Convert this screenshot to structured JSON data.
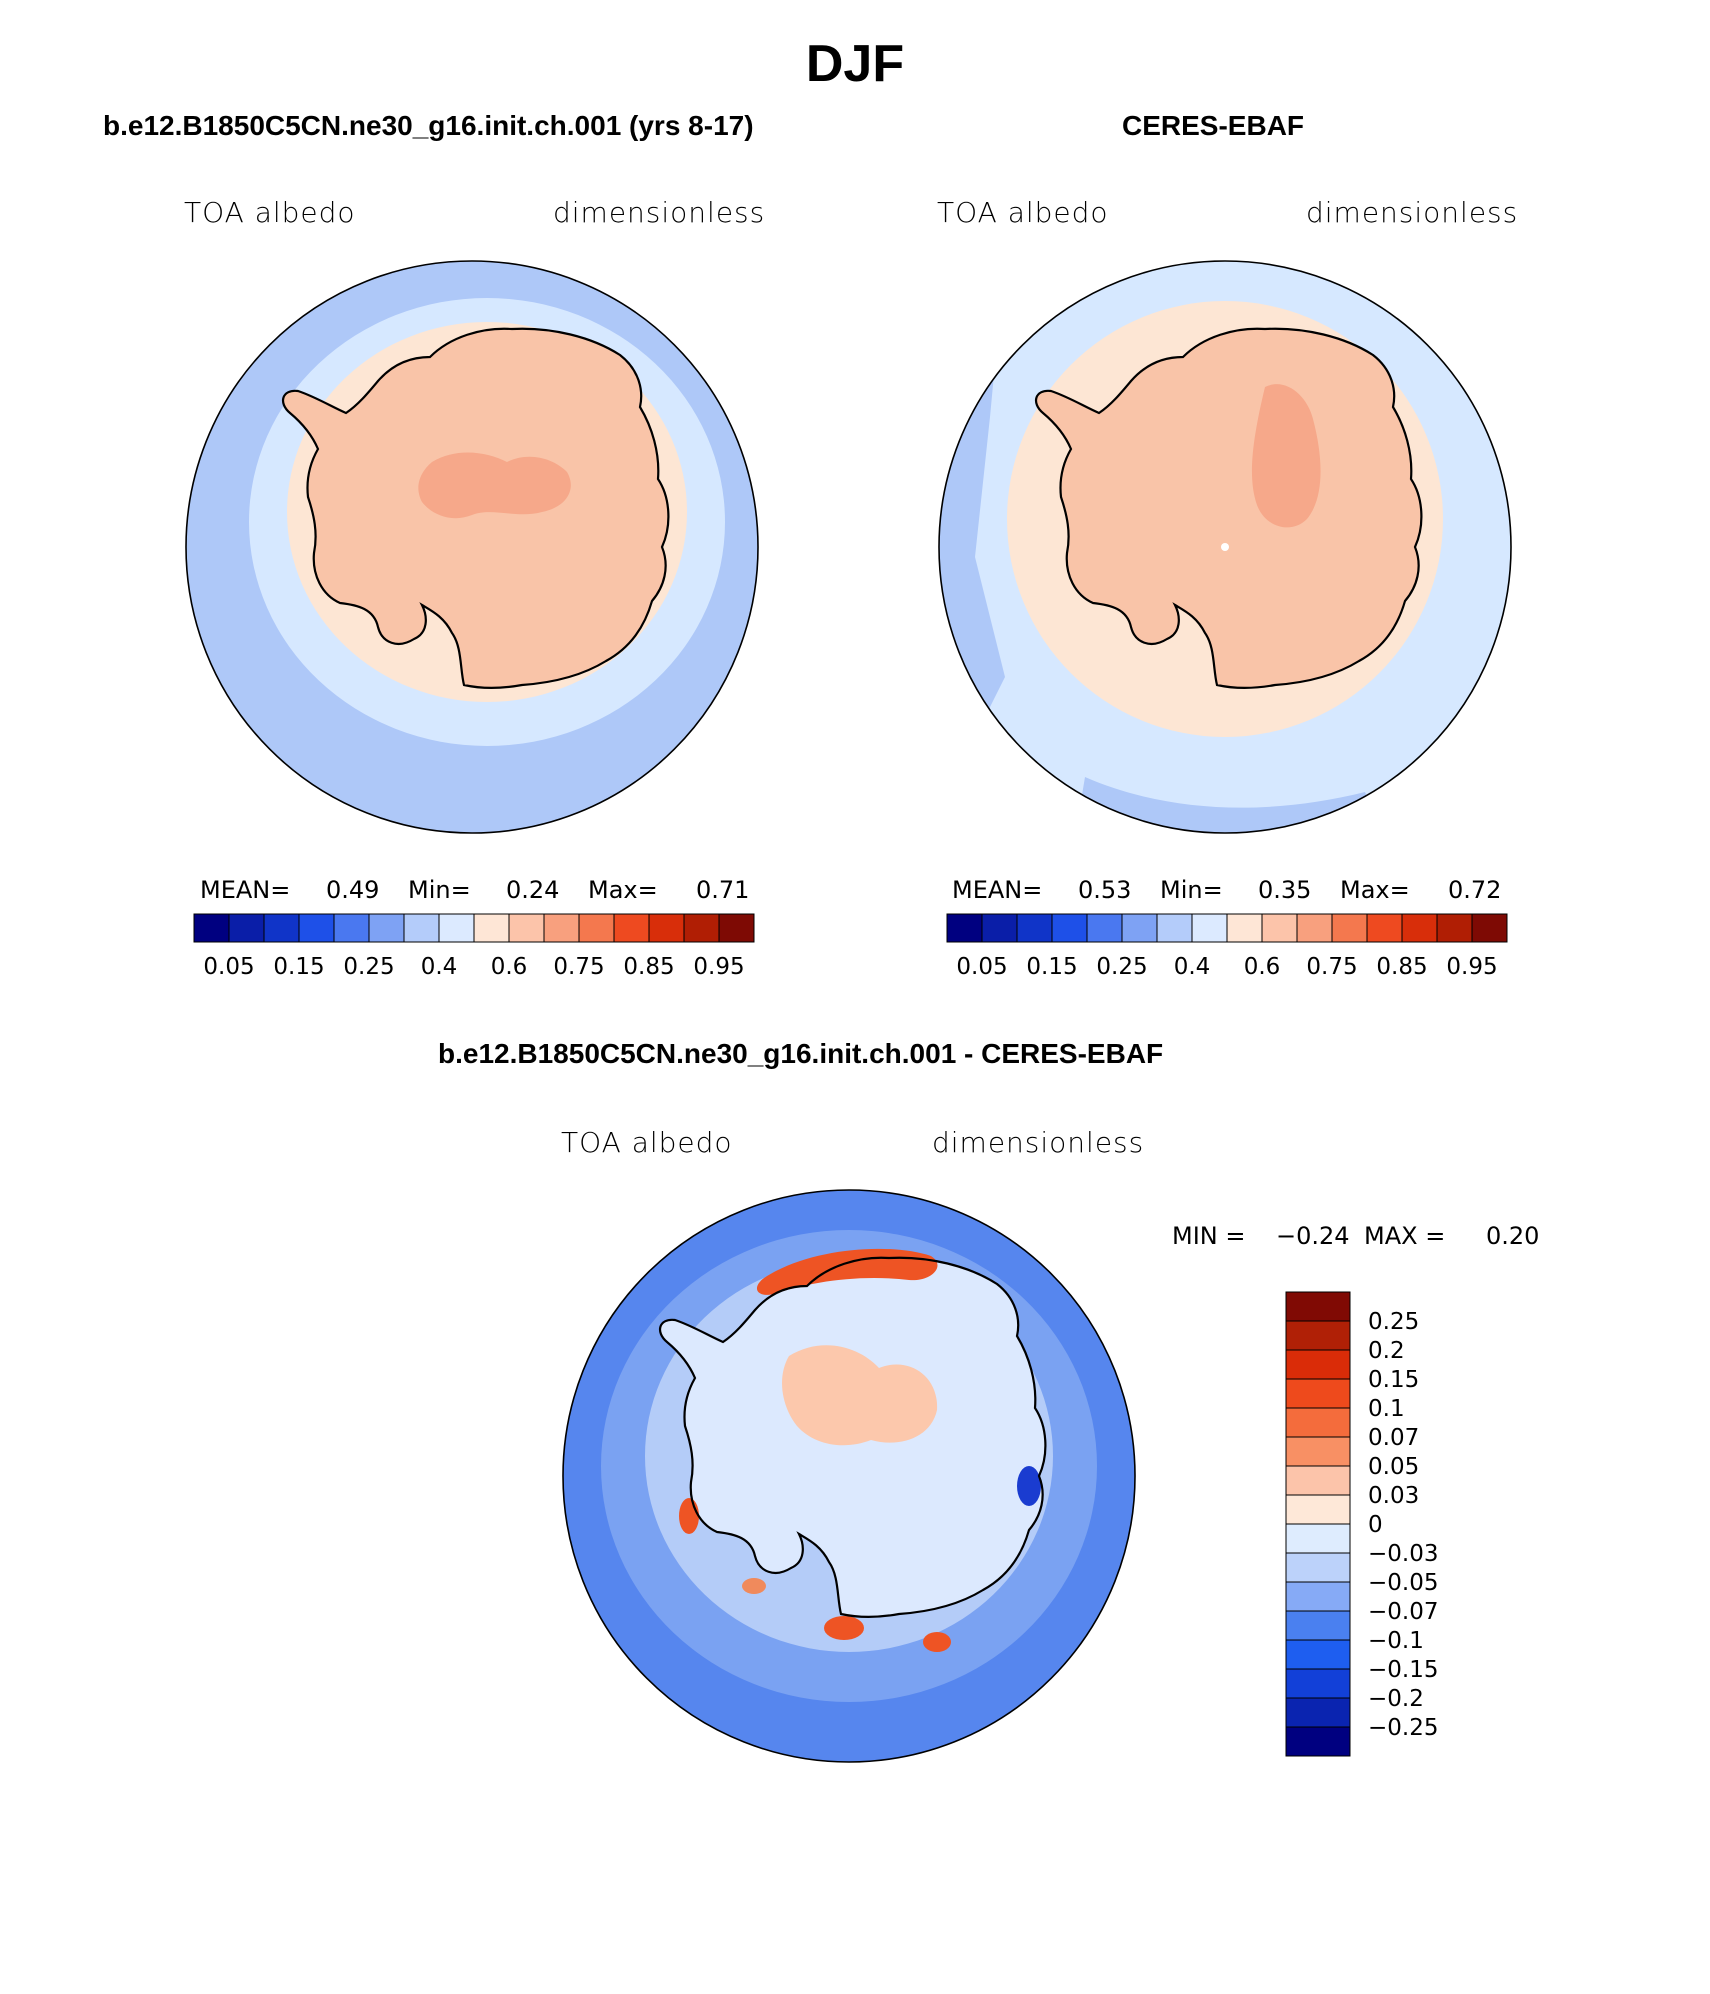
{
  "page_title": "DJF",
  "panels": [
    {
      "title": "b.e12.B1850C5CN.ne30_g16.init.ch.001 (yrs 8-17)",
      "variable": "TOA albedo",
      "units": "dimensionless",
      "stats": {
        "mean_label": "MEAN=",
        "mean": "0.49",
        "min_label": "Min=",
        "min": "0.24",
        "max_label": "Max=",
        "max": "0.71"
      }
    },
    {
      "title": "CERES-EBAF",
      "variable": "TOA albedo",
      "units": "dimensionless",
      "stats": {
        "mean_label": "MEAN=",
        "mean": "0.53",
        "min_label": "Min=",
        "min": "0.35",
        "max_label": "Max=",
        "max": "0.72"
      }
    },
    {
      "title": "b.e12.B1850C5CN.ne30_g16.init.ch.001 - CERES-EBAF",
      "variable": "TOA albedo",
      "units": "dimensionless",
      "stats": {
        "min_label": "MIN =",
        "min": "−0.24",
        "max_label": "MAX =",
        "max": "0.20"
      }
    }
  ],
  "colorbar_abs": {
    "colors": [
      "#000080",
      "#0a1ea8",
      "#1034c8",
      "#1e50e8",
      "#4a78f0",
      "#7ea2f4",
      "#b4ccfa",
      "#dceaff",
      "#fee6d6",
      "#fcc4aa",
      "#f8a07e",
      "#f4784e",
      "#ee4a20",
      "#d82e0a",
      "#b01e04",
      "#7e0a04"
    ],
    "labels": [
      "0.05",
      "0.15",
      "0.25",
      "0.4",
      "0.6",
      "0.75",
      "0.85",
      "0.95"
    ]
  },
  "colorbar_diff": {
    "colors": [
      "#000080",
      "#0a24b0",
      "#1240d8",
      "#1e5ef0",
      "#4a80f0",
      "#86aaf6",
      "#bcd2fa",
      "#deecfe",
      "#fee8d8",
      "#fcc4aa",
      "#f89064",
      "#f46c3c",
      "#ee4a1c",
      "#da2c08",
      "#b02006",
      "#800a04"
    ],
    "labels": [
      "0.25",
      "0.2",
      "0.15",
      "0.1",
      "0.07",
      "0.05",
      "0.03",
      "0",
      "−0.03",
      "−0.05",
      "−0.07",
      "−0.1",
      "−0.15",
      "−0.2",
      "−0.25"
    ]
  },
  "map_colors": {
    "ocean_far": "#aec8f8",
    "ocean_mid": "#d6e8ff",
    "sea_ice": "#fde6d4",
    "continent": "#f9c4a8",
    "plateau": "#f6a88a",
    "diff_far": "#5686ee",
    "diff_mid": "#7aa2f2",
    "diff_near": "#b4ccf8",
    "diff_land": "#dce9fe",
    "diff_pos": "#fcc8ac",
    "diff_hot": "#ee5424",
    "coast": "#000000"
  }
}
